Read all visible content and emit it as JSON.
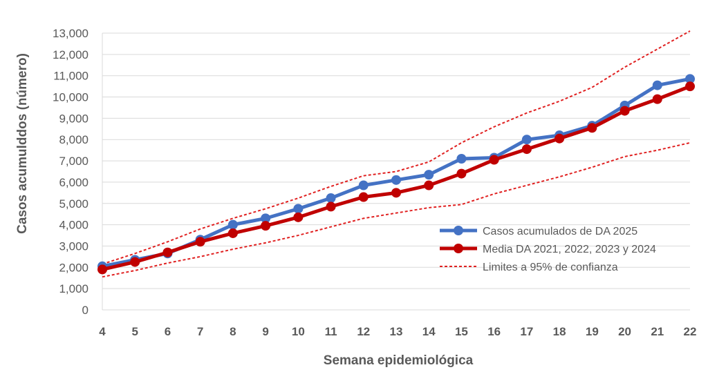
{
  "chart_data": {
    "type": "line",
    "xlabel": "Semana epidemiológica",
    "ylabel": "Casos acumulddos (número)",
    "x": [
      4,
      5,
      6,
      7,
      8,
      9,
      10,
      11,
      12,
      13,
      14,
      15,
      16,
      17,
      18,
      19,
      20,
      21,
      22
    ],
    "ylim": [
      0,
      13000
    ],
    "yticks": [
      0,
      1000,
      2000,
      3000,
      4000,
      5000,
      6000,
      7000,
      8000,
      9000,
      10000,
      11000,
      12000,
      13000
    ],
    "ytick_labels": [
      "0",
      "1,000",
      "2,000",
      "3,000",
      "4,000",
      "5,000",
      "6,000",
      "7,000",
      "8,000",
      "9,000",
      "10,000",
      "11,000",
      "12,000",
      "13,000"
    ],
    "xtick_labels": [
      "4",
      "5",
      "6",
      "7",
      "8",
      "9",
      "10",
      "11",
      "12",
      "13",
      "14",
      "15",
      "16",
      "17",
      "18",
      "19",
      "20",
      "21",
      "22"
    ],
    "grid": "horizontal",
    "legend_position": "right",
    "series": [
      {
        "name": "Casos acumulados de DA 2025",
        "color": "#4472C4",
        "style": "line-markers",
        "values": [
          2050,
          2350,
          2650,
          3300,
          4000,
          4300,
          4750,
          5250,
          5850,
          6100,
          6350,
          7100,
          7150,
          8000,
          8200,
          8650,
          9600,
          10550,
          10850
        ]
      },
      {
        "name": "Media DA 2021, 2022, 2023 y 2024",
        "color": "#C00000",
        "style": "line-markers",
        "values": [
          1900,
          2250,
          2700,
          3200,
          3600,
          3950,
          4350,
          4850,
          5300,
          5500,
          5850,
          6400,
          7050,
          7550,
          8050,
          8550,
          9350,
          9900,
          10500
        ]
      },
      {
        "name": "Limites a 95% de confianza",
        "color": "#E02020",
        "style": "dashed",
        "values": [
          2150,
          2650,
          3200,
          3800,
          4300,
          4750,
          5250,
          5800,
          6300,
          6500,
          6950,
          7850,
          8600,
          9250,
          9800,
          10450,
          11400,
          12250,
          13100
        ]
      },
      {
        "name": "",
        "color": "#E02020",
        "style": "dashed",
        "values": [
          1550,
          1850,
          2200,
          2500,
          2850,
          3150,
          3500,
          3900,
          4300,
          4550,
          4800,
          4950,
          5450,
          5850,
          6250,
          6700,
          7200,
          7500,
          7850
        ]
      }
    ]
  }
}
